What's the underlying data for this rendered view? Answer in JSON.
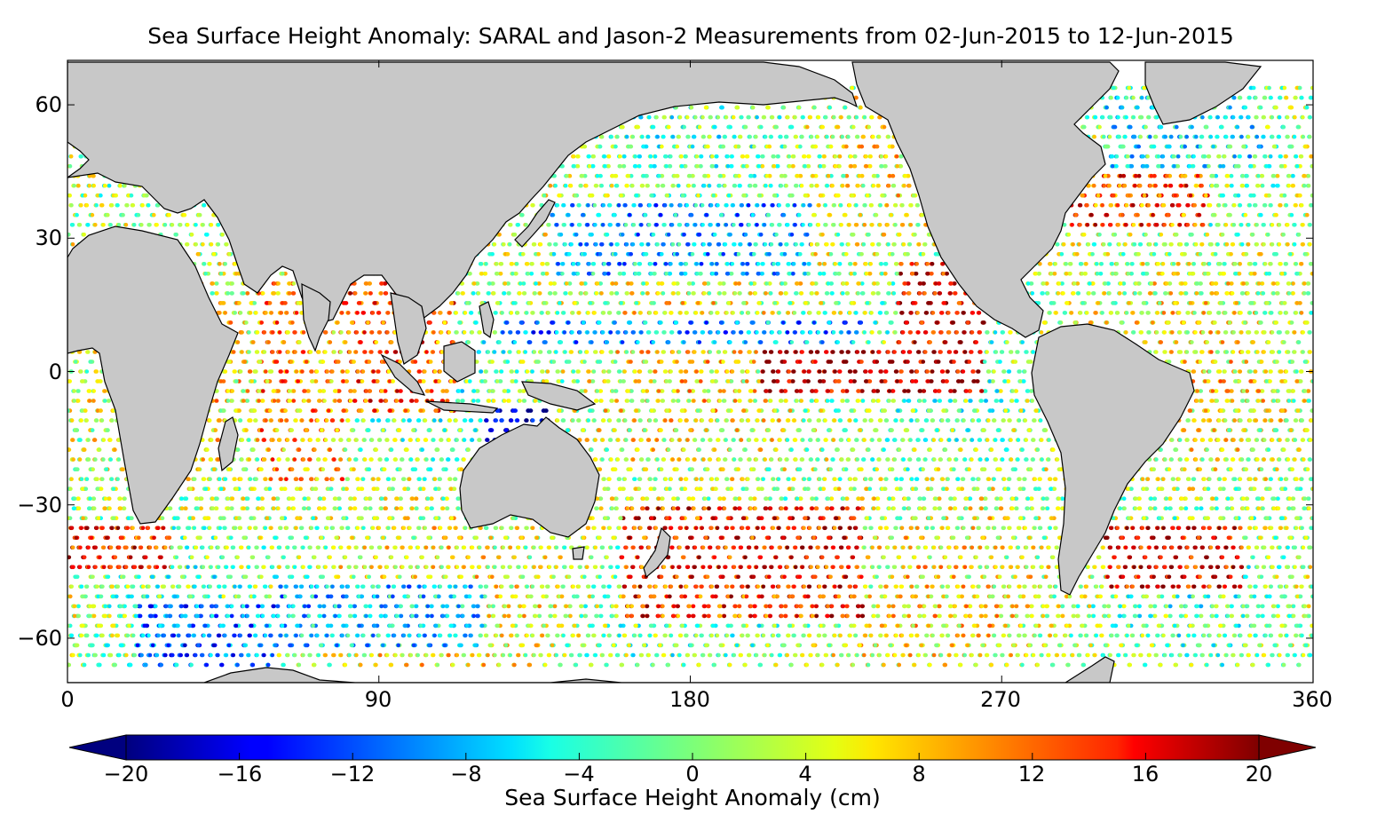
{
  "title": "Sea Surface Height Anomaly: SARAL and Jason-2 Measurements from 02-Jun-2015 to 12-Jun-2015",
  "map": {
    "projection": "equirectangular",
    "lon_range": [
      0,
      360
    ],
    "lat_range": [
      -70,
      70
    ],
    "x_ticks": [
      "0",
      "90",
      "180",
      "270",
      "360"
    ],
    "x_tick_values": [
      0,
      90,
      180,
      270,
      360
    ],
    "y_ticks": [
      "60",
      "30",
      "0",
      "−30",
      "−60"
    ],
    "y_tick_values": [
      60,
      30,
      0,
      -30,
      -60
    ],
    "land_color": "#c8c8c8",
    "ocean_background": "#ffffff",
    "tracks": "satellite altimeter ground tracks coloured by anomaly"
  },
  "colorbar": {
    "label": "Sea Surface Height Anomaly (cm)",
    "range": [
      -20,
      20
    ],
    "ticks": [
      "−20",
      "−16",
      "−12",
      "−8",
      "−4",
      "0",
      "4",
      "8",
      "12",
      "16",
      "20"
    ],
    "tick_values": [
      -20,
      -16,
      -12,
      -8,
      -4,
      0,
      4,
      8,
      12,
      16,
      20
    ],
    "colormap": "jet",
    "extend": "both",
    "under_color": "#00007f",
    "over_color": "#7f0000"
  },
  "chart_data": {
    "type": "heatmap",
    "title": "Sea Surface Height Anomaly: SARAL and Jason-2 Measurements from 02-Jun-2015 to 12-Jun-2015",
    "xlabel": "",
    "ylabel": "",
    "xlim": [
      0,
      360
    ],
    "ylim": [
      -70,
      70
    ],
    "colorbar_label": "Sea Surface Height Anomaly (cm)",
    "value_range": [
      -20,
      20
    ],
    "regions": [
      {
        "lon": [
          200,
          265
        ],
        "lat": [
          -5,
          5
        ],
        "anomaly": 18
      },
      {
        "lon": [
          240,
          265
        ],
        "lat": [
          5,
          25
        ],
        "anomaly": 16
      },
      {
        "lon": [
          125,
          230
        ],
        "lat": [
          5,
          12
        ],
        "anomaly": -10
      },
      {
        "lon": [
          140,
          215
        ],
        "lat": [
          22,
          38
        ],
        "anomaly": -8
      },
      {
        "lon": [
          80,
          112
        ],
        "lat": [
          -10,
          22
        ],
        "anomaly": 12
      },
      {
        "lon": [
          55,
          80
        ],
        "lat": [
          -25,
          20
        ],
        "anomaly": 8
      },
      {
        "lon": [
          120,
          140
        ],
        "lat": [
          -18,
          -8
        ],
        "anomaly": -18
      },
      {
        "lon": [
          20,
          60
        ],
        "lat": [
          -68,
          -52
        ],
        "anomaly": -10
      },
      {
        "lon": [
          60,
          120
        ],
        "lat": [
          -62,
          -48
        ],
        "anomaly": -8
      },
      {
        "lon": [
          160,
          230
        ],
        "lat": [
          -55,
          -30
        ],
        "anomaly": 14
      },
      {
        "lon": [
          300,
          340
        ],
        "lat": [
          -50,
          -35
        ],
        "anomaly": 16
      },
      {
        "lon": [
          290,
          330
        ],
        "lat": [
          32,
          45
        ],
        "anomaly": 12
      },
      {
        "lon": [
          300,
          345
        ],
        "lat": [
          45,
          62
        ],
        "anomaly": -4
      },
      {
        "lon": [
          0,
          30
        ],
        "lat": [
          -45,
          -35
        ],
        "anomaly": 14
      }
    ]
  }
}
